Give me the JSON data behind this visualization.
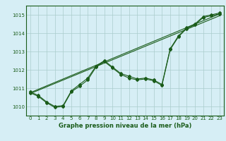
{
  "bg_color": "#d6eef5",
  "grid_color": "#aacccc",
  "line_color": "#1a5c1a",
  "xlabel": "Graphe pression niveau de la mer (hPa)",
  "xlim": [
    -0.5,
    23.5
  ],
  "ylim": [
    1009.5,
    1015.5
  ],
  "yticks": [
    1010,
    1011,
    1012,
    1013,
    1014,
    1015
  ],
  "xticks": [
    0,
    1,
    2,
    3,
    4,
    5,
    6,
    7,
    8,
    9,
    10,
    11,
    12,
    13,
    14,
    15,
    16,
    17,
    18,
    19,
    20,
    21,
    22,
    23
  ],
  "series_linear1": {
    "x": [
      0,
      23
    ],
    "y": [
      1010.75,
      1015.05
    ]
  },
  "series_linear2": {
    "x": [
      0,
      23
    ],
    "y": [
      1010.7,
      1014.95
    ]
  },
  "series_irregular1": {
    "x": [
      0,
      1,
      2,
      3,
      4,
      5,
      6,
      7,
      8,
      9,
      10,
      11,
      12,
      13,
      14,
      15,
      16,
      17,
      18,
      19,
      20,
      21,
      22,
      23
    ],
    "y": [
      1010.8,
      1010.6,
      1010.25,
      1010.0,
      1010.05,
      1010.85,
      1011.2,
      1011.55,
      1012.2,
      1012.5,
      1012.15,
      1011.8,
      1011.65,
      1011.5,
      1011.55,
      1011.45,
      1011.2,
      1013.15,
      1013.85,
      1014.3,
      1014.5,
      1014.9,
      1015.0,
      1015.1
    ]
  },
  "series_irregular2": {
    "x": [
      0,
      1,
      2,
      3,
      4,
      5,
      6,
      7,
      8,
      9,
      10,
      11,
      12,
      13,
      14,
      15,
      16,
      17,
      18,
      19,
      20,
      21,
      22,
      23
    ],
    "y": [
      1010.75,
      1010.55,
      1010.2,
      1009.95,
      1010.0,
      1010.8,
      1011.1,
      1011.45,
      1012.15,
      1012.45,
      1012.1,
      1011.75,
      1011.55,
      1011.45,
      1011.5,
      1011.4,
      1011.15,
      1013.1,
      1013.8,
      1014.25,
      1014.45,
      1014.85,
      1014.95,
      1015.05
    ]
  }
}
